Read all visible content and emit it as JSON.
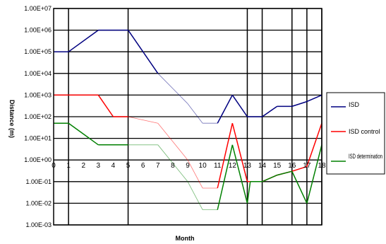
{
  "chart_data": {
    "type": "line",
    "title": "",
    "xlabel": "Month",
    "ylabel": "Distance (m)",
    "y_scale": "log",
    "ylim": [
      0.001,
      10000000
    ],
    "xlim": [
      0,
      18
    ],
    "grid": true,
    "legend_position": "right",
    "y_tick_labels": [
      "1.00E+07",
      "1.00E+06",
      "1.00E+05",
      "1.00E+04",
      "1.00E+03",
      "1.00E+02",
      "1.00E+01",
      "1.00E+00",
      "1.00E-01",
      "1.00E-02",
      "1.00E-03"
    ],
    "x": [
      0,
      1,
      2,
      3,
      4,
      5,
      6,
      7,
      8,
      9,
      10,
      11,
      12,
      13,
      14,
      15,
      16,
      17,
      18
    ],
    "vertical_gridlines": [
      1,
      5,
      13,
      14,
      16,
      17,
      18
    ],
    "series": [
      {
        "name": "ISD",
        "color": "#000080",
        "points": [
          [
            0,
            100000
          ],
          [
            1,
            100000
          ],
          [
            3,
            1000000
          ],
          [
            5,
            1000000
          ],
          [
            7,
            10000
          ],
          [
            9,
            400
          ],
          [
            10,
            50
          ],
          [
            11,
            50
          ],
          [
            12,
            1000
          ],
          [
            13,
            100
          ],
          [
            14,
            100
          ],
          [
            15,
            300
          ],
          [
            16,
            300
          ],
          [
            17,
            500
          ],
          [
            18,
            1000
          ]
        ]
      },
      {
        "name": "ISD control",
        "color": "#ff0000",
        "points": [
          [
            0,
            1000
          ],
          [
            1,
            1000
          ],
          [
            3,
            1000
          ],
          [
            4,
            100
          ],
          [
            5,
            100
          ],
          [
            7,
            50
          ],
          [
            9,
            1
          ],
          [
            10,
            0.05
          ],
          [
            11,
            0.05
          ],
          [
            12,
            50
          ],
          [
            13,
            0.1
          ],
          [
            14,
            0.1
          ],
          [
            15,
            0.2
          ],
          [
            16,
            0.3
          ],
          [
            17,
            0.5
          ],
          [
            18,
            50
          ]
        ]
      },
      {
        "name": "ISD determination",
        "color": "#008000",
        "points": [
          [
            0,
            50
          ],
          [
            1,
            50
          ],
          [
            3,
            5
          ],
          [
            5,
            5
          ],
          [
            6,
            5
          ],
          [
            7,
            5
          ],
          [
            9,
            0.1
          ],
          [
            10,
            0.005
          ],
          [
            11,
            0.005
          ],
          [
            12,
            5
          ],
          [
            13,
            0.01
          ],
          [
            13.2,
            0.1
          ],
          [
            14,
            0.1
          ],
          [
            15,
            0.2
          ],
          [
            16,
            0.3
          ],
          [
            17,
            0.01
          ],
          [
            18,
            5
          ]
        ]
      }
    ]
  }
}
